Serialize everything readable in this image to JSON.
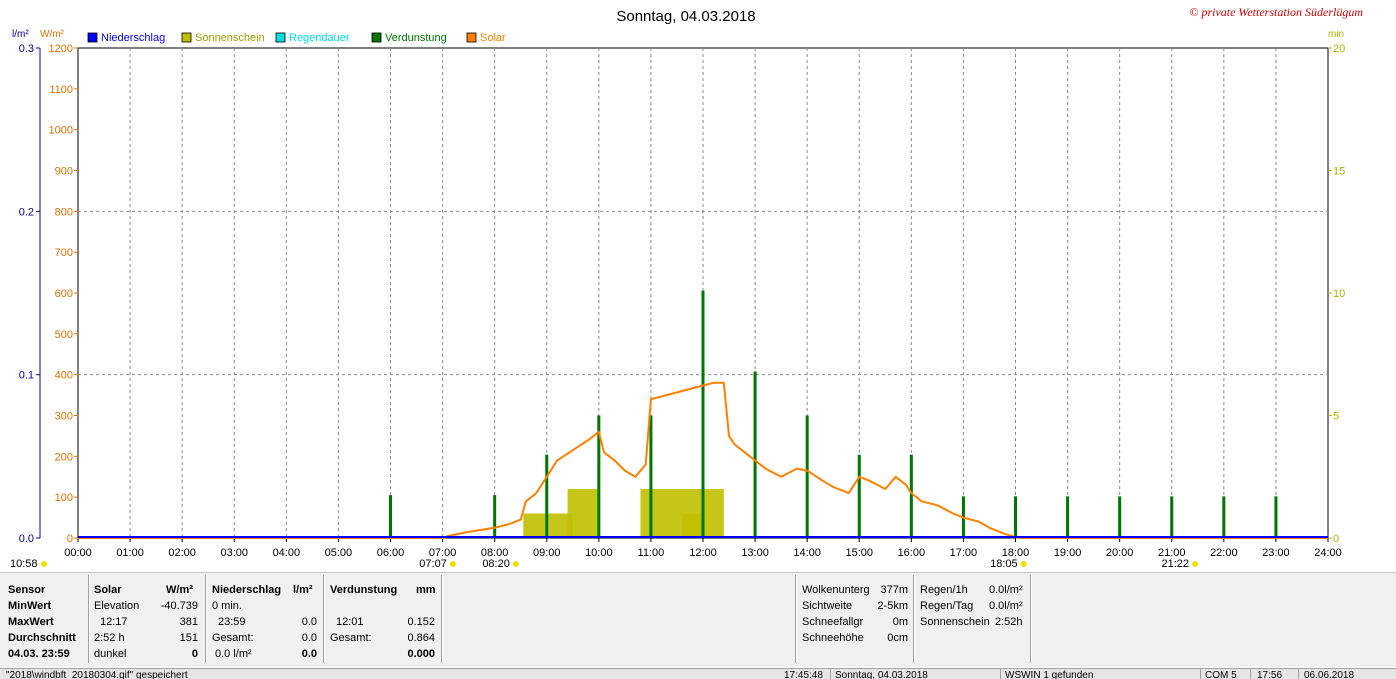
{
  "window": {
    "title": "Sonntag, 04.03.2018",
    "copyright": "© private Wetterstation Süderlügum"
  },
  "colors": {
    "niederschlag": "#0000ff",
    "sonnenschein": "#c0c000",
    "regendauer": "#00e0e0",
    "verdunstung": "#007700",
    "solar": "#ff8000",
    "axis_left_precip": "#0000aa",
    "axis_left_solar": "#e07000",
    "axis_right": "#b0b000"
  },
  "chart_data": {
    "type": "line",
    "title": "Sonntag, 04.03.2018",
    "axis_units": {
      "precip": "l/m²",
      "solar": "W/m²",
      "right": "min"
    },
    "legend": [
      {
        "name": "Niederschlag",
        "color": "#0000ff"
      },
      {
        "name": "Sonnenschein",
        "color": "#c0c000"
      },
      {
        "name": "Regendauer",
        "color": "#00e0e0"
      },
      {
        "name": "Verdunstung",
        "color": "#007700"
      },
      {
        "name": "Solar",
        "color": "#ff8000"
      }
    ],
    "x_ticks": [
      "00:00",
      "01:00",
      "02:00",
      "03:00",
      "04:00",
      "05:00",
      "06:00",
      "07:00",
      "08:00",
      "09:00",
      "10:00",
      "11:00",
      "12:00",
      "13:00",
      "14:00",
      "15:00",
      "16:00",
      "17:00",
      "18:00",
      "19:00",
      "20:00",
      "21:00",
      "22:00",
      "23:00",
      "24:00"
    ],
    "y_precip_ticks": [
      "0.0",
      "0.1",
      "0.2",
      "0.3"
    ],
    "y_solar_ticks": [
      "0",
      "100",
      "200",
      "300",
      "400",
      "500",
      "600",
      "700",
      "800",
      "900",
      "1000",
      "1100",
      "1200"
    ],
    "y_right_ticks": [
      "0",
      "5",
      "10",
      "15",
      "20"
    ],
    "ylim_precip": [
      0,
      0.3
    ],
    "ylim_solar": [
      0,
      1200
    ],
    "ylim_right": [
      0,
      20
    ],
    "xlim_hours": [
      0,
      24
    ],
    "sun_markers": [
      {
        "label": "10:58",
        "hour": -0.6
      },
      {
        "label": "07:07",
        "hour": 7.12
      },
      {
        "label": "08:20",
        "hour": 8.33
      },
      {
        "label": "18:05",
        "hour": 18.08
      },
      {
        "label": "21:22",
        "hour": 21.37
      }
    ],
    "series": [
      {
        "name": "Solar",
        "type": "line",
        "points": [
          [
            0,
            0
          ],
          [
            7.0,
            0
          ],
          [
            7.1,
            5
          ],
          [
            7.5,
            15
          ],
          [
            8.0,
            25
          ],
          [
            8.3,
            35
          ],
          [
            8.5,
            45
          ],
          [
            8.6,
            90
          ],
          [
            8.8,
            110
          ],
          [
            9.0,
            150
          ],
          [
            9.2,
            190
          ],
          [
            9.5,
            215
          ],
          [
            9.8,
            240
          ],
          [
            10.0,
            260
          ],
          [
            10.1,
            210
          ],
          [
            10.3,
            190
          ],
          [
            10.5,
            165
          ],
          [
            10.7,
            150
          ],
          [
            10.9,
            180
          ],
          [
            11.0,
            340
          ],
          [
            11.3,
            350
          ],
          [
            11.6,
            360
          ],
          [
            11.9,
            370
          ],
          [
            12.2,
            380
          ],
          [
            12.4,
            380
          ],
          [
            12.5,
            250
          ],
          [
            12.6,
            230
          ],
          [
            12.8,
            210
          ],
          [
            13.0,
            190
          ],
          [
            13.2,
            170
          ],
          [
            13.5,
            150
          ],
          [
            13.8,
            170
          ],
          [
            14.0,
            165
          ],
          [
            14.3,
            140
          ],
          [
            14.5,
            125
          ],
          [
            14.8,
            110
          ],
          [
            15.0,
            150
          ],
          [
            15.2,
            140
          ],
          [
            15.5,
            120
          ],
          [
            15.7,
            150
          ],
          [
            15.9,
            130
          ],
          [
            16.0,
            110
          ],
          [
            16.2,
            90
          ],
          [
            16.5,
            80
          ],
          [
            16.8,
            60
          ],
          [
            17.0,
            50
          ],
          [
            17.3,
            40
          ],
          [
            17.5,
            25
          ],
          [
            17.8,
            10
          ],
          [
            18.0,
            2
          ],
          [
            18.1,
            0
          ],
          [
            24,
            0
          ]
        ]
      },
      {
        "name": "Verdunstung",
        "type": "bar",
        "points": [
          [
            6.0,
            1.75
          ],
          [
            8.0,
            1.75
          ],
          [
            9.0,
            3.4
          ],
          [
            10.0,
            5.0
          ],
          [
            11.0,
            5.0
          ],
          [
            12.0,
            10.1
          ],
          [
            13.0,
            6.8
          ],
          [
            14.0,
            5.0
          ],
          [
            15.0,
            3.4
          ],
          [
            16.0,
            3.4
          ],
          [
            17.0,
            1.7
          ],
          [
            18.0,
            1.7
          ],
          [
            19.0,
            1.7
          ],
          [
            20.0,
            1.7
          ],
          [
            21.0,
            1.7
          ],
          [
            22.0,
            1.7
          ],
          [
            23.0,
            1.7
          ]
        ]
      },
      {
        "name": "Sonnenschein",
        "type": "area",
        "segments": [
          [
            8.55,
            9.5,
            1.0
          ],
          [
            9.4,
            10.0,
            2.0
          ],
          [
            10.8,
            12.4,
            2.0
          ],
          [
            11.6,
            12.0,
            1.0
          ]
        ]
      },
      {
        "name": "Niederschlag",
        "type": "line",
        "points": [
          [
            0,
            0
          ],
          [
            24,
            0
          ]
        ]
      }
    ]
  },
  "stats": {
    "headers": {
      "sensor": "Sensor",
      "solar": "Solar",
      "solar_unit": "W/m²",
      "niederschlag": "Niederschlag",
      "niederschlag_unit": "l/m²",
      "verdunstung": "Verdunstung",
      "verdunstung_unit": "mm"
    },
    "rows": {
      "min": {
        "label": "MinWert",
        "solar_a": "Elevation",
        "solar_b": "-40.739",
        "nd_a": "0 min.",
        "nd_b": "",
        "vd_a": "",
        "vd_b": ""
      },
      "max": {
        "label": "MaxWert",
        "solar_a": "12:17",
        "solar_b": "381",
        "nd_a": "23:59",
        "nd_b": "0.0",
        "vd_a": "12:01",
        "vd_b": "0.152"
      },
      "avg": {
        "label": "Durchschnitt",
        "solar_a": "2:52 h",
        "solar_b": "151",
        "nd_a": "Gesamt:",
        "nd_b": "0.0",
        "vd_a": "Gesamt:",
        "vd_b": "0.864"
      },
      "now": {
        "label": "04.03. 23:59",
        "solar_a": "dunkel",
        "solar_b": "0",
        "nd_a": "0.0 l/m²",
        "nd_b": "0.0",
        "vd_a": "",
        "vd_b": "0.000"
      }
    }
  },
  "weather": {
    "wolkenuntergrenze_label": "Wolkenunterg",
    "wolkenuntergrenze_value": "377m",
    "sichtweite_label": "Sichtweite",
    "sichtweite_value": "2-5km",
    "schneefallgrenze_label": "Schneefallgr",
    "schneefallgrenze_value": "0m",
    "schneehoehe_label": "Schneehöhe",
    "schneehoehe_value": "0cm",
    "regen_h_label": "Regen/1h",
    "regen_h_value": "0.0l/m²",
    "regen_tag_label": "Regen/Tag",
    "regen_tag_value": "0.0l/m²",
    "sonnenschein_label": "Sonnenschein",
    "sonnenschein_value": "2:52h"
  },
  "statusbar": {
    "file": "\"2018\\windbft_20180304.gif\" gespeichert",
    "time1": "17:45:48",
    "date": "Sonntag, 04.03.2018",
    "device": "WSWIN 1 gefunden",
    "port": "COM 5",
    "time2": "17:56",
    "date2": "06.06.2018"
  }
}
